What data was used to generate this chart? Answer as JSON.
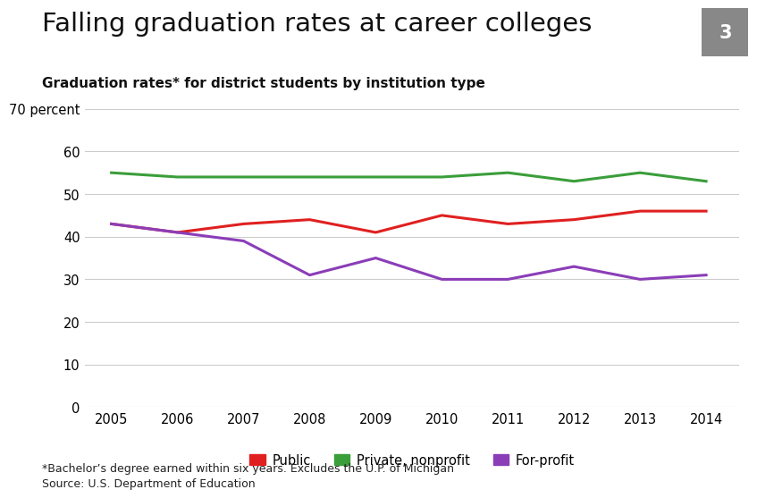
{
  "title": "Falling graduation rates at career colleges",
  "subtitle": "Graduation rates* for district students by institution type",
  "title_number": "3",
  "years": [
    2005,
    2006,
    2007,
    2008,
    2009,
    2010,
    2011,
    2012,
    2013,
    2014
  ],
  "public": [
    43,
    41,
    43,
    44,
    41,
    45,
    43,
    44,
    46,
    46
  ],
  "private_nonprofit": [
    55,
    54,
    54,
    54,
    54,
    54,
    55,
    53,
    55,
    53
  ],
  "for_profit": [
    43,
    41,
    39,
    31,
    35,
    30,
    30,
    33,
    30,
    31
  ],
  "public_color": "#e02020",
  "private_color": "#3a9e3a",
  "forprofit_color": "#8b3db8",
  "ylim": [
    0,
    70
  ],
  "yticks": [
    0,
    10,
    20,
    30,
    40,
    50,
    60,
    70
  ],
  "footnote1": "*Bachelor’s degree earned within six years. Excludes the U.P. of Michigan",
  "footnote2": "Source: U.S. Department of Education",
  "bg_color": "#ffffff",
  "grid_color": "#cccccc",
  "line_width": 2.2
}
